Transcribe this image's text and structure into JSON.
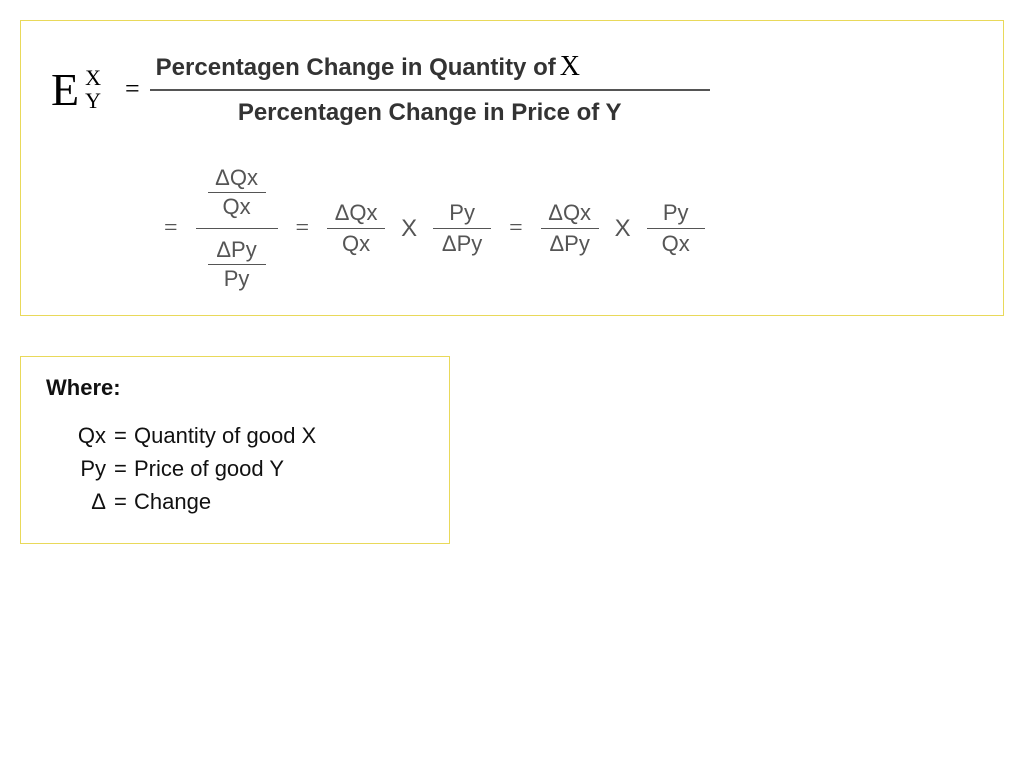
{
  "type": "equation-diagram",
  "colors": {
    "border": "#e9d95a",
    "text_black": "#000000",
    "text_gray": "#555555",
    "bar_dark": "#555555"
  },
  "formula": {
    "E": "E",
    "sub_x": "X",
    "sub_y": "Y",
    "equals": "=",
    "word_numerator_prefix": "Percentagen Change in Quantity of ",
    "word_numerator_X": "X",
    "word_denominator": "Percentagen Change in Price of Y"
  },
  "derivation": {
    "eq": "=",
    "mult": "X",
    "dQx": "ΔQx",
    "Qx": "Qx",
    "dPy": "ΔPy",
    "Py": "Py"
  },
  "where": {
    "title": "Where:",
    "items": [
      {
        "sym": "Qx",
        "eq": "=",
        "desc": "Quantity of good X"
      },
      {
        "sym": "Py",
        "eq": "=",
        "desc": "Price of good Y"
      },
      {
        "sym": "Δ",
        "eq": "=",
        "desc": "Change"
      }
    ]
  },
  "style": {
    "body_width": 1024,
    "body_height": 745,
    "bigE_fontsize": 46,
    "word_fontsize": 24,
    "frac_fontsize": 22,
    "where_fontsize": 22,
    "border_width": 1
  }
}
